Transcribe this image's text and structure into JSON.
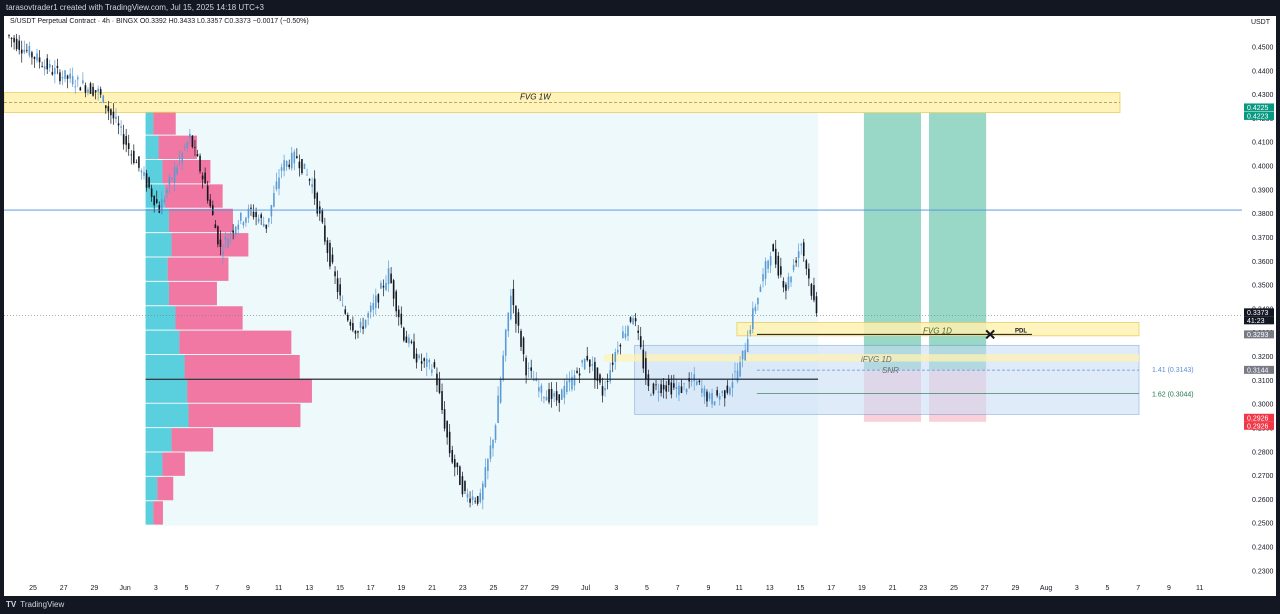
{
  "header": {
    "created_by": "tarasovtrader1 created with TradingView.com, Jul 15, 2025 14:18 UTC+3"
  },
  "legend": {
    "symbol": "S/USDT Perpetual Contract · 4h · BINGX",
    "ohlc": "O0.3392 H0.3433 L0.3357 C0.3373 −0.0017 (−0.50%)"
  },
  "price_axis": {
    "unit": "USDT",
    "ticks": [
      "0.4500",
      "0.4400",
      "0.4300",
      "0.4200",
      "0.4100",
      "0.4000",
      "0.3900",
      "0.3800",
      "0.3700",
      "0.3600",
      "0.3500",
      "0.3400",
      "0.3300",
      "0.3200",
      "0.3100",
      "0.3000",
      "0.2900",
      "0.2800",
      "0.2700",
      "0.2600",
      "0.2500",
      "0.2400",
      "0.2300"
    ],
    "tick_values": [
      0.45,
      0.44,
      0.43,
      0.42,
      0.41,
      0.4,
      0.39,
      0.38,
      0.37,
      0.36,
      0.35,
      0.34,
      0.33,
      0.32,
      0.31,
      0.3,
      0.29,
      0.28,
      0.27,
      0.26,
      0.25,
      0.24,
      0.23
    ],
    "badges": [
      {
        "text": "0.4225",
        "color": "#089981"
      },
      {
        "text": "0.4223",
        "color": "#089981"
      },
      {
        "text": "0.3373",
        "color": "#131722"
      },
      {
        "text": "41:23",
        "color": "#131722"
      },
      {
        "text": "0.3293",
        "color": "#787b86"
      },
      {
        "text": "0.3144",
        "color": "#787b86"
      },
      {
        "text": "0.2926",
        "color": "#f23645"
      },
      {
        "text": "0.2926",
        "color": "#f23645"
      }
    ]
  },
  "time_axis": {
    "ticks": [
      "25",
      "27",
      "29",
      "Jun",
      "3",
      "5",
      "7",
      "9",
      "11",
      "13",
      "15",
      "17",
      "19",
      "21",
      "23",
      "25",
      "27",
      "29",
      "Jul",
      "3",
      "5",
      "7",
      "9",
      "11",
      "13",
      "15",
      "17",
      "19",
      "21",
      "23",
      "25",
      "27",
      "29",
      "Aug",
      "3",
      "5",
      "7",
      "9",
      "11"
    ]
  },
  "annotations": {
    "fvg_1w": "FVG 1W",
    "fvg_1d": "FVG 1D",
    "ifvg_1d": "iFVG 1D",
    "snr": "SNR",
    "pdl": "PDL",
    "fib_141": "1.41 (0.3143)",
    "fib_162": "1.62 (0.3044)"
  },
  "colors": {
    "up": "#5b9bd5",
    "down": "#131722",
    "vp_up": "#5ad0de",
    "vp_down": "#f06292",
    "tp_zone": "#7fcdb8",
    "sl_zone": "#f8c8d4",
    "fvg": "#fff2b3",
    "blue_box": "#c8dcf6"
  },
  "footer": {
    "brand": "TradingView"
  },
  "chart_data": {
    "type": "candlestick",
    "title": "",
    "xlabel": "",
    "ylabel": "",
    "ylim": [
      0.227,
      0.463
    ],
    "x_range": [
      "2025-05-23",
      "2025-08-12"
    ],
    "price_path": [
      [
        "2025-05-23",
        0.455
      ],
      [
        "2025-05-26",
        0.44
      ],
      [
        "2025-05-29",
        0.431
      ],
      [
        "2025-05-30",
        0.42
      ],
      [
        "2025-06-01",
        0.395
      ],
      [
        "2025-06-02",
        0.382
      ],
      [
        "2025-06-03",
        0.398
      ],
      [
        "2025-06-04",
        0.412
      ],
      [
        "2025-06-05",
        0.392
      ],
      [
        "2025-06-06",
        0.365
      ],
      [
        "2025-06-07",
        0.376
      ],
      [
        "2025-06-08",
        0.381
      ],
      [
        "2025-06-09",
        0.375
      ],
      [
        "2025-06-10",
        0.4
      ],
      [
        "2025-06-11",
        0.404
      ],
      [
        "2025-06-12",
        0.392
      ],
      [
        "2025-06-13",
        0.365
      ],
      [
        "2025-06-14",
        0.34
      ],
      [
        "2025-06-15",
        0.33
      ],
      [
        "2025-06-16",
        0.341
      ],
      [
        "2025-06-17",
        0.355
      ],
      [
        "2025-06-18",
        0.329
      ],
      [
        "2025-06-19",
        0.318
      ],
      [
        "2025-06-20",
        0.315
      ],
      [
        "2025-06-21",
        0.28
      ],
      [
        "2025-06-22",
        0.262
      ],
      [
        "2025-06-23",
        0.26
      ],
      [
        "2025-06-24",
        0.292
      ],
      [
        "2025-06-25",
        0.347
      ],
      [
        "2025-06-26",
        0.315
      ],
      [
        "2025-06-27",
        0.305
      ],
      [
        "2025-06-28",
        0.302
      ],
      [
        "2025-06-29",
        0.31
      ],
      [
        "2025-06-30",
        0.32
      ],
      [
        "2025-07-01",
        0.305
      ],
      [
        "2025-07-02",
        0.325
      ],
      [
        "2025-07-03",
        0.338
      ],
      [
        "2025-07-04",
        0.306
      ],
      [
        "2025-07-05",
        0.308
      ],
      [
        "2025-07-06",
        0.306
      ],
      [
        "2025-07-07",
        0.31
      ],
      [
        "2025-07-08",
        0.302
      ],
      [
        "2025-07-09",
        0.305
      ],
      [
        "2025-07-10",
        0.316
      ],
      [
        "2025-07-11",
        0.342
      ],
      [
        "2025-07-12",
        0.365
      ],
      [
        "2025-07-13",
        0.349
      ],
      [
        "2025-07-14",
        0.368
      ],
      [
        "2025-07-15",
        0.3373
      ]
    ],
    "volume_profile": {
      "price_rows": [
        0.42,
        0.41,
        0.4,
        0.39,
        0.38,
        0.37,
        0.36,
        0.35,
        0.34,
        0.33,
        0.32,
        0.31,
        0.3,
        0.29,
        0.28,
        0.27,
        0.26
      ],
      "up": [
        12,
        20,
        26,
        30,
        36,
        40,
        34,
        36,
        46,
        52,
        60,
        64,
        66,
        40,
        26,
        18,
        12
      ],
      "down": [
        14,
        24,
        30,
        36,
        40,
        48,
        38,
        30,
        42,
        70,
        72,
        78,
        70,
        26,
        14,
        10,
        6
      ]
    },
    "levels": {
      "fvg_1w": [
        0.4225,
        0.4283
      ],
      "horizontal_line": 0.3815,
      "fvg_1d": [
        0.3287,
        0.3332
      ],
      "ifvg_1d": [
        0.3179,
        0.3197
      ],
      "snr": 0.3143,
      "fib_141": 0.3143,
      "fib_162": 0.3044,
      "pdl": 0.3293,
      "blue_box": [
        0.2957,
        0.3247
      ],
      "tp_top": 0.4223,
      "sl_bottom": 0.2926,
      "entry": 0.3144
    }
  }
}
